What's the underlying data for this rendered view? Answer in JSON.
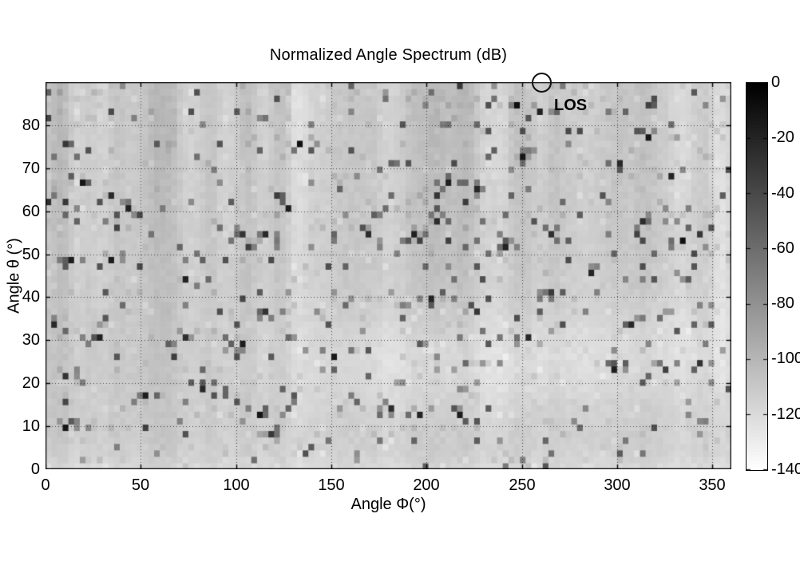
{
  "figure": {
    "background": "#ffffff",
    "annotation_color": "#111111"
  },
  "chart_data": {
    "type": "heatmap",
    "title": "Normalized Angle Spectrum (dB)",
    "xlabel": "Angle Φ(°)",
    "ylabel": "Angle θ (°)",
    "xlim": [
      0,
      360
    ],
    "ylim": [
      0,
      90
    ],
    "xticks": [
      0,
      50,
      100,
      150,
      200,
      250,
      300,
      350
    ],
    "yticks": [
      0,
      10,
      20,
      30,
      40,
      50,
      60,
      70,
      80
    ],
    "grid": "dotted",
    "background_level_db": -111,
    "colorbar": {
      "position": "right",
      "min": -140,
      "max": 0,
      "ticks": [
        0,
        -20,
        -40,
        -60,
        -80,
        -100,
        -120,
        -140
      ],
      "colormap": "gray: 0 dB = black, -140 dB = white"
    },
    "annotation": {
      "label": "LOS",
      "marker": "circle",
      "phi": 260,
      "theta": 90
    },
    "peaks": [
      {
        "phi": 19,
        "theta": 66,
        "db": -12
      },
      {
        "phi": 35,
        "theta": 64,
        "db": -22
      },
      {
        "phi": 43,
        "theta": 61,
        "db": -18
      },
      {
        "phi": 1,
        "theta": 62,
        "db": -25
      },
      {
        "phi": 13,
        "theta": 49,
        "db": -16
      },
      {
        "phi": 33,
        "theta": 48,
        "db": -15
      },
      {
        "phi": 5,
        "theta": 33,
        "db": -22
      },
      {
        "phi": 27,
        "theta": 30,
        "db": -18
      },
      {
        "phi": 9,
        "theta": 21,
        "db": -28
      },
      {
        "phi": 10,
        "theta": 10,
        "db": -12
      },
      {
        "phi": 52,
        "theta": 17,
        "db": -16
      },
      {
        "phi": 82,
        "theta": 18,
        "db": -22
      },
      {
        "phi": 74,
        "theta": 44,
        "db": -18
      },
      {
        "phi": 73,
        "theta": 31,
        "db": -26
      },
      {
        "phi": 103,
        "theta": 29,
        "db": -16
      },
      {
        "phi": 112,
        "theta": 13,
        "db": -12
      },
      {
        "phi": 119,
        "theta": 8,
        "db": -30
      },
      {
        "phi": 115,
        "theta": 37,
        "db": -28
      },
      {
        "phi": 134,
        "theta": 75,
        "db": -8
      },
      {
        "phi": 126,
        "theta": 61,
        "db": -16
      },
      {
        "phi": 115,
        "theta": 54,
        "db": -22
      },
      {
        "phi": 103,
        "theta": 54,
        "db": -28
      },
      {
        "phi": 150,
        "theta": 26,
        "db": -14
      },
      {
        "phi": 169,
        "theta": 54,
        "db": -24
      },
      {
        "phi": 180,
        "theta": 14,
        "db": -24
      },
      {
        "phi": 192,
        "theta": 54,
        "db": -18
      },
      {
        "phi": 204,
        "theta": 57,
        "db": -24
      },
      {
        "phi": 202,
        "theta": 39,
        "db": -20
      },
      {
        "phi": 211,
        "theta": 66,
        "db": -18
      },
      {
        "phi": 227,
        "theta": 65,
        "db": -22
      },
      {
        "phi": 226,
        "theta": 37,
        "db": -30
      },
      {
        "phi": 239,
        "theta": 52,
        "db": -14
      },
      {
        "phi": 246,
        "theta": 85,
        "db": -8
      },
      {
        "phi": 258,
        "theta": 83,
        "db": -18
      },
      {
        "phi": 249,
        "theta": 72,
        "db": -12
      },
      {
        "phi": 253,
        "theta": 31,
        "db": -22
      },
      {
        "phi": 265,
        "theta": 55,
        "db": -26
      },
      {
        "phi": 265,
        "theta": 41,
        "db": -32
      },
      {
        "phi": 286,
        "theta": 46,
        "db": -20
      },
      {
        "phi": 299,
        "theta": 23,
        "db": -16
      },
      {
        "phi": 307,
        "theta": 34,
        "db": -22
      },
      {
        "phi": 315,
        "theta": 77,
        "db": -12
      },
      {
        "phi": 301,
        "theta": 71,
        "db": -22
      },
      {
        "phi": 329,
        "theta": 68,
        "db": -20
      },
      {
        "phi": 314,
        "theta": 58,
        "db": -24
      },
      {
        "phi": 333,
        "theta": 53,
        "db": -8
      },
      {
        "phi": 343,
        "theta": 54,
        "db": -30
      },
      {
        "phi": 242,
        "theta": 52,
        "db": -18
      },
      {
        "phi": 218,
        "theta": 12,
        "db": -16
      },
      {
        "phi": 196,
        "theta": 13,
        "db": -20
      },
      {
        "phi": 344,
        "theta": 24,
        "db": -28
      },
      {
        "phi": 326,
        "theta": 23,
        "db": -35
      }
    ]
  }
}
